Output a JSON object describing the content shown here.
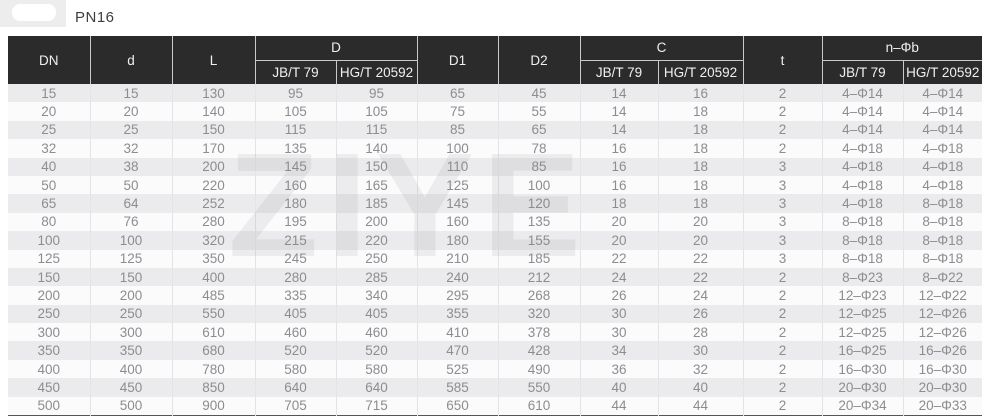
{
  "page": {
    "title": "PN16"
  },
  "watermark": {
    "text": "ZIYE"
  },
  "colors": {
    "header_bg": "#2b2b2c",
    "header_text": "#f0f0f0",
    "row_stripe": "#ebebed",
    "row_plain": "#fbfbfc",
    "cell_text": "#8d8d90"
  },
  "table": {
    "header": {
      "dn": "DN",
      "d": "d",
      "l": "L",
      "D": "D",
      "d1": "D1",
      "d2": "D2",
      "c": "C",
      "t": "t",
      "nphib": "n–Φb",
      "jbt": "JB/T 79",
      "hgt": "HG/T 20592"
    },
    "col_keys": [
      "dn",
      "d",
      "l",
      "d-jbt79",
      "d-hgt20592",
      "d1",
      "d2",
      "c-jbt79",
      "c-hgt20592",
      "t",
      "nphib-jbt79",
      "nphib-hgt20592"
    ],
    "columns": [
      "DN",
      "d",
      "L",
      "D JB/T 79",
      "D HG/T 20592",
      "D1",
      "D2",
      "C JB/T 79",
      "C HG/T 20592",
      "t",
      "n–Φb JB/T 79",
      "n–Φb HG/T 20592"
    ],
    "rows": [
      [
        "15",
        "15",
        "130",
        "95",
        "95",
        "65",
        "45",
        "14",
        "16",
        "2",
        "4–Φ14",
        "4–Φ14"
      ],
      [
        "20",
        "20",
        "140",
        "105",
        "105",
        "75",
        "55",
        "14",
        "18",
        "2",
        "4–Φ14",
        "4–Φ14"
      ],
      [
        "25",
        "25",
        "150",
        "115",
        "115",
        "85",
        "65",
        "14",
        "18",
        "2",
        "4–Φ14",
        "4–Φ14"
      ],
      [
        "32",
        "32",
        "170",
        "135",
        "140",
        "100",
        "78",
        "16",
        "18",
        "2",
        "4–Φ18",
        "4–Φ18"
      ],
      [
        "40",
        "38",
        "200",
        "145",
        "150",
        "110",
        "85",
        "16",
        "18",
        "3",
        "4–Φ18",
        "4–Φ18"
      ],
      [
        "50",
        "50",
        "220",
        "160",
        "165",
        "125",
        "100",
        "16",
        "18",
        "3",
        "4–Φ18",
        "4–Φ18"
      ],
      [
        "65",
        "64",
        "252",
        "180",
        "185",
        "145",
        "120",
        "18",
        "18",
        "3",
        "4–Φ18",
        "8–Φ18"
      ],
      [
        "80",
        "76",
        "280",
        "195",
        "200",
        "160",
        "135",
        "20",
        "20",
        "3",
        "8–Φ18",
        "8–Φ18"
      ],
      [
        "100",
        "100",
        "320",
        "215",
        "220",
        "180",
        "155",
        "20",
        "20",
        "3",
        "8–Φ18",
        "8–Φ18"
      ],
      [
        "125",
        "125",
        "350",
        "245",
        "250",
        "210",
        "185",
        "22",
        "22",
        "3",
        "8–Φ18",
        "8–Φ18"
      ],
      [
        "150",
        "150",
        "400",
        "280",
        "285",
        "240",
        "212",
        "24",
        "22",
        "2",
        "8–Φ23",
        "8–Φ22"
      ],
      [
        "200",
        "200",
        "485",
        "335",
        "340",
        "295",
        "268",
        "26",
        "24",
        "2",
        "12–Φ23",
        "12–Φ22"
      ],
      [
        "250",
        "250",
        "550",
        "405",
        "405",
        "355",
        "320",
        "30",
        "26",
        "2",
        "12–Φ25",
        "12–Φ26"
      ],
      [
        "300",
        "300",
        "610",
        "460",
        "460",
        "410",
        "378",
        "30",
        "28",
        "2",
        "12–Φ25",
        "12–Φ26"
      ],
      [
        "350",
        "350",
        "680",
        "520",
        "520",
        "470",
        "428",
        "34",
        "30",
        "2",
        "16–Φ25",
        "16–Φ26"
      ],
      [
        "400",
        "400",
        "780",
        "580",
        "580",
        "525",
        "490",
        "36",
        "32",
        "2",
        "16–Φ30",
        "16–Φ30"
      ],
      [
        "450",
        "450",
        "850",
        "640",
        "640",
        "585",
        "550",
        "40",
        "40",
        "2",
        "20–Φ30",
        "20–Φ30"
      ],
      [
        "500",
        "500",
        "900",
        "705",
        "715",
        "650",
        "610",
        "44",
        "44",
        "2",
        "20–Φ34",
        "20–Φ33"
      ]
    ]
  }
}
